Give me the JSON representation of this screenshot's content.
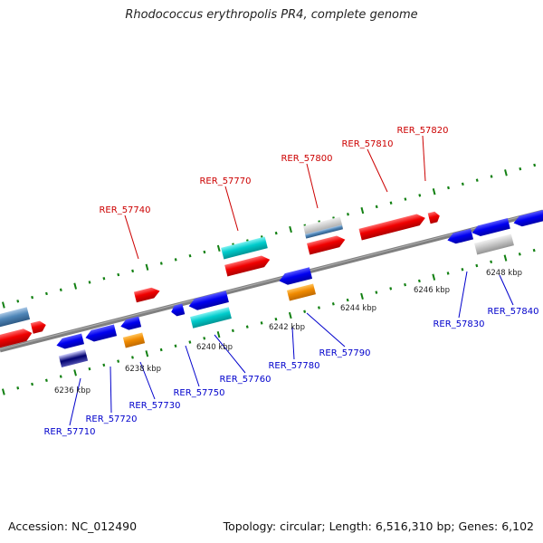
{
  "title": "Rhodococcus erythropolis PR4, complete genome",
  "footer": {
    "accession": "Accession: NC_012490",
    "summary": "Topology: circular; Length: 6,516,310 bp; Genes: 6,102"
  },
  "colors": {
    "backbone": "#808080",
    "tick_dots": "#128012",
    "label_forward": "#cc0000",
    "label_reverse": "#0000cc",
    "tick_label": "#222222"
  },
  "upper_labels": [
    "RER_57740",
    "RER_57770",
    "RER_57800",
    "RER_57810",
    "RER_57820"
  ],
  "lower_labels": [
    "RER_57710",
    "RER_57720",
    "RER_57730",
    "RER_57750",
    "RER_57760",
    "RER_57780",
    "RER_57790",
    "RER_57830",
    "RER_57840"
  ],
  "ticks": [
    "6236 kbp",
    "6238 kbp",
    "6240 kbp",
    "6242 kbp",
    "6244 kbp",
    "6246 kbp",
    "6248 kbp"
  ]
}
